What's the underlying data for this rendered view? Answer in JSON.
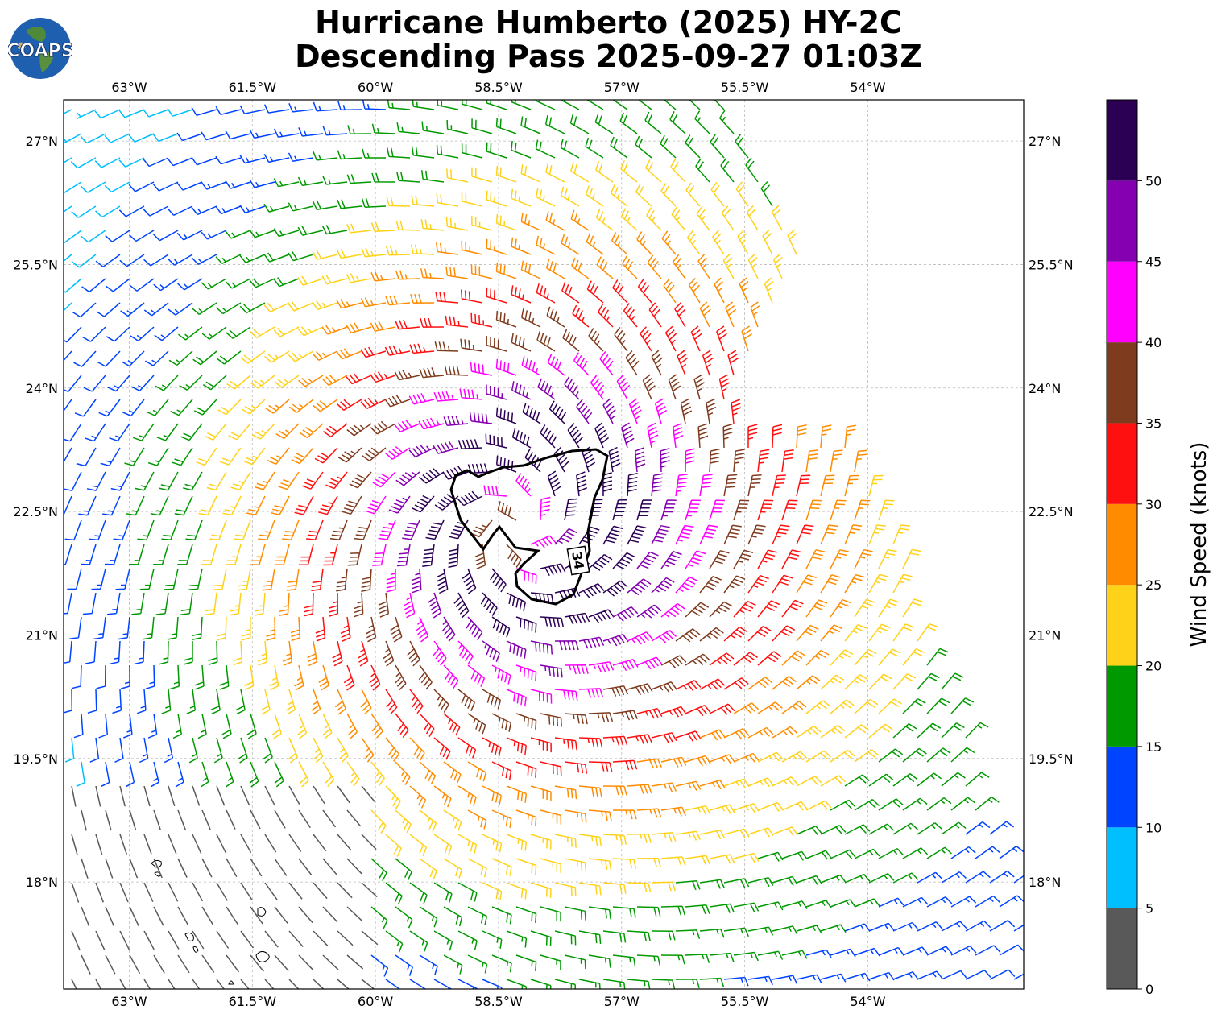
{
  "title": {
    "line1": "Hurricane Humberto (2025) HY-2C",
    "line2": "Descending Pass 2025-09-27 01:03Z"
  },
  "logo": {
    "text": "COAPS",
    "icon": "globe-icon"
  },
  "map": {
    "lon_range": [
      -63.8,
      -52.1
    ],
    "lat_range": [
      16.7,
      27.5
    ],
    "lon_ticks": [
      "63°W",
      "61.5°W",
      "60°W",
      "58.5°W",
      "57°W",
      "55.5°W",
      "54°W"
    ],
    "lon_tick_values": [
      -63.0,
      -61.5,
      -60.0,
      -58.5,
      -57.0,
      -55.5,
      -54.0
    ],
    "lat_ticks": [
      "27°N",
      "25.5°N",
      "24°N",
      "22.5°N",
      "21°N",
      "19.5°N",
      "18°N"
    ],
    "lat_tick_values": [
      27.0,
      25.5,
      24.0,
      22.5,
      21.0,
      19.5,
      18.0
    ],
    "grid": true,
    "storm_center": {
      "lon": -58.3,
      "lat": 22.3
    },
    "contour": {
      "label": "34",
      "units": "knots"
    }
  },
  "colorbar": {
    "label": "Wind Speed (knots)",
    "ticks": [
      "0",
      "5",
      "10",
      "15",
      "20",
      "25",
      "30",
      "35",
      "40",
      "45",
      "50"
    ],
    "colors": [
      "#595959",
      "#00bfff",
      "#0044ff",
      "#009900",
      "#ffd21a",
      "#ff8c00",
      "#ff1010",
      "#7f3b1e",
      "#ff00ff",
      "#8400b0",
      "#2b0054"
    ]
  }
}
